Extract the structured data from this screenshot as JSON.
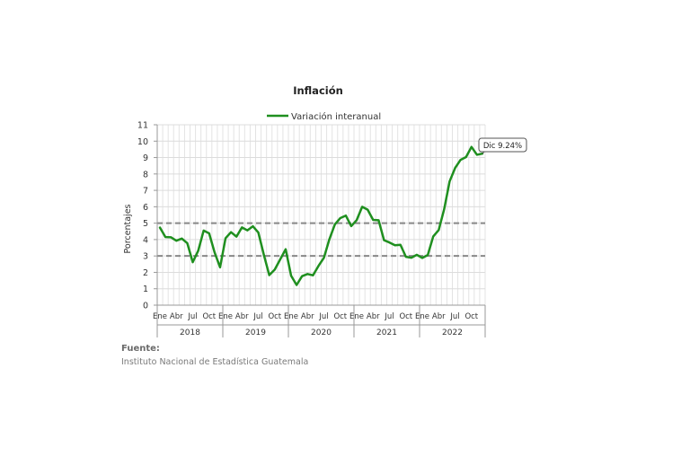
{
  "chart_data": {
    "type": "line",
    "title": "Inflación",
    "ylabel": "Porcentajes",
    "xlabel": "",
    "ylim": [
      0,
      11
    ],
    "yticks": [
      0,
      1,
      2,
      3,
      4,
      5,
      6,
      7,
      8,
      9,
      10,
      11
    ],
    "grid": true,
    "legend_position": "top-center",
    "month_tick_labels": [
      "Ene",
      "Abr",
      "Jul",
      "Oct"
    ],
    "years": [
      "2018",
      "2019",
      "2020",
      "2021",
      "2022"
    ],
    "reference_lines": [
      5,
      3
    ],
    "series": [
      {
        "name": "Variación interanual",
        "color": "#1f8f1f",
        "values": [
          4.73,
          4.15,
          4.14,
          3.93,
          4.06,
          3.78,
          2.62,
          3.32,
          4.55,
          4.38,
          3.21,
          2.31,
          4.08,
          4.45,
          4.18,
          4.74,
          4.56,
          4.81,
          4.43,
          3.08,
          1.83,
          2.17,
          2.79,
          3.41,
          1.79,
          1.23,
          1.77,
          1.9,
          1.82,
          2.39,
          2.89,
          4.02,
          4.92,
          5.31,
          5.46,
          4.82,
          5.19,
          6.0,
          5.82,
          5.2,
          5.18,
          3.96,
          3.82,
          3.65,
          3.68,
          2.95,
          2.89,
          3.07,
          2.88,
          3.06,
          4.19,
          4.58,
          5.85,
          7.55,
          8.36,
          8.86,
          9.03,
          9.65,
          9.17,
          9.24
        ]
      }
    ],
    "annotation": "Dic 9.24%"
  },
  "source": {
    "label": "Fuente:",
    "text": "Instituto Nacional de Estadística Guatemala"
  }
}
